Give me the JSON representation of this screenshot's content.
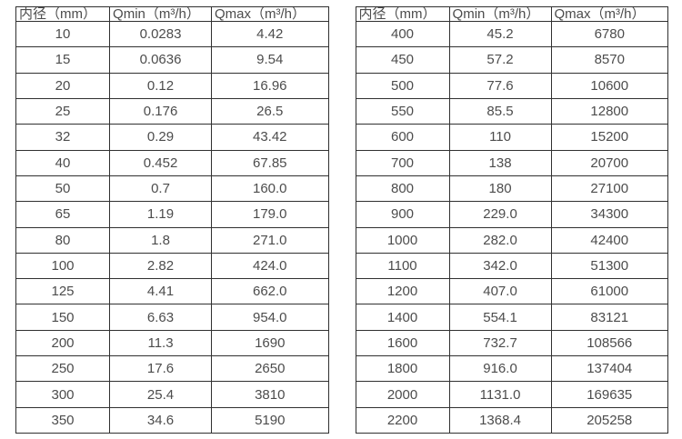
{
  "colors": {
    "background": "#ffffff",
    "border": "#303030",
    "text": "#4c4c4c"
  },
  "tables": [
    {
      "name": "small-diameters",
      "headers": [
        "内径（mm）",
        "Qmin（m³/h）",
        "Qmax（m³/h）"
      ],
      "rows": [
        [
          "10",
          "0.0283",
          "4.42"
        ],
        [
          "15",
          "0.0636",
          "9.54"
        ],
        [
          "20",
          "0.12",
          "16.96"
        ],
        [
          "25",
          "0.176",
          "26.5"
        ],
        [
          "32",
          "0.29",
          "43.42"
        ],
        [
          "40",
          "0.452",
          "67.85"
        ],
        [
          "50",
          "0.7",
          "160.0"
        ],
        [
          "65",
          "1.19",
          "179.0"
        ],
        [
          "80",
          "1.8",
          "271.0"
        ],
        [
          "100",
          "2.82",
          "424.0"
        ],
        [
          "125",
          "4.41",
          "662.0"
        ],
        [
          "150",
          "6.63",
          "954.0"
        ],
        [
          "200",
          "11.3",
          "1690"
        ],
        [
          "250",
          "17.6",
          "2650"
        ],
        [
          "300",
          "25.4",
          "3810"
        ],
        [
          "350",
          "34.6",
          "5190"
        ]
      ]
    },
    {
      "name": "large-diameters",
      "headers": [
        "内径（mm）",
        "Qmin（m³/h）",
        "Qmax（m³/h）"
      ],
      "rows": [
        [
          "400",
          "45.2",
          "6780"
        ],
        [
          "450",
          "57.2",
          "8570"
        ],
        [
          "500",
          "77.6",
          "10600"
        ],
        [
          "550",
          "85.5",
          "12800"
        ],
        [
          "600",
          "110",
          "15200"
        ],
        [
          "700",
          "138",
          "20700"
        ],
        [
          "800",
          "180",
          "27100"
        ],
        [
          "900",
          "229.0",
          "34300"
        ],
        [
          "1000",
          "282.0",
          "42400"
        ],
        [
          "1100",
          "342.0",
          "51300"
        ],
        [
          "1200",
          "407.0",
          "61000"
        ],
        [
          "1400",
          "554.1",
          "83121"
        ],
        [
          "1600",
          "732.7",
          "108566"
        ],
        [
          "1800",
          "916.0",
          "137404"
        ],
        [
          "2000",
          "1131.0",
          "169635"
        ],
        [
          "2200",
          "1368.4",
          "205258"
        ]
      ]
    }
  ]
}
